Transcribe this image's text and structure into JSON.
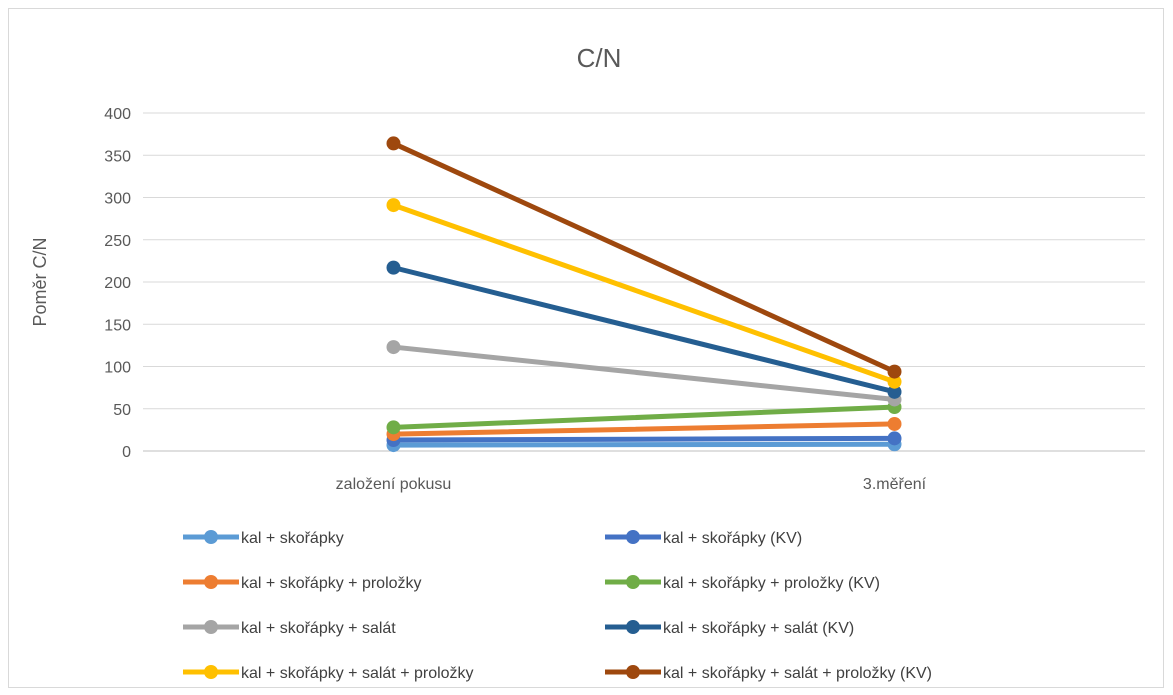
{
  "chart_data": {
    "type": "line",
    "title": "C/N",
    "xlabel": "",
    "ylabel": "Poměr C/N",
    "categories": [
      "založení pokusu",
      "3.měření"
    ],
    "ylim": [
      0,
      400
    ],
    "yticks": [
      0,
      50,
      100,
      150,
      200,
      250,
      300,
      350,
      400
    ],
    "grid": true,
    "legend_position": "bottom",
    "series": [
      {
        "name": "kal + skořápky",
        "values": [
          7,
          8
        ],
        "color": "#5b9bd5"
      },
      {
        "name": "kal + skořápky (KV)",
        "values": [
          13,
          15
        ],
        "color": "#4472c4"
      },
      {
        "name": "kal + skořápky + proložky",
        "values": [
          20,
          32
        ],
        "color": "#ed7d31"
      },
      {
        "name": "kal + skořápky + proložky (KV)",
        "values": [
          28,
          52
        ],
        "color": "#70ad47"
      },
      {
        "name": "kal + skořápky + salát",
        "values": [
          123,
          61
        ],
        "color": "#a5a5a5"
      },
      {
        "name": "kal + skořápky + salát (KV)",
        "values": [
          217,
          70
        ],
        "color": "#255e91"
      },
      {
        "name": "kal + skořápky + salát + proložky",
        "values": [
          291,
          82
        ],
        "color": "#ffc000"
      },
      {
        "name": "kal + skořápky + salát + proložky (KV)",
        "values": [
          364,
          94
        ],
        "color": "#9e480e"
      }
    ]
  }
}
